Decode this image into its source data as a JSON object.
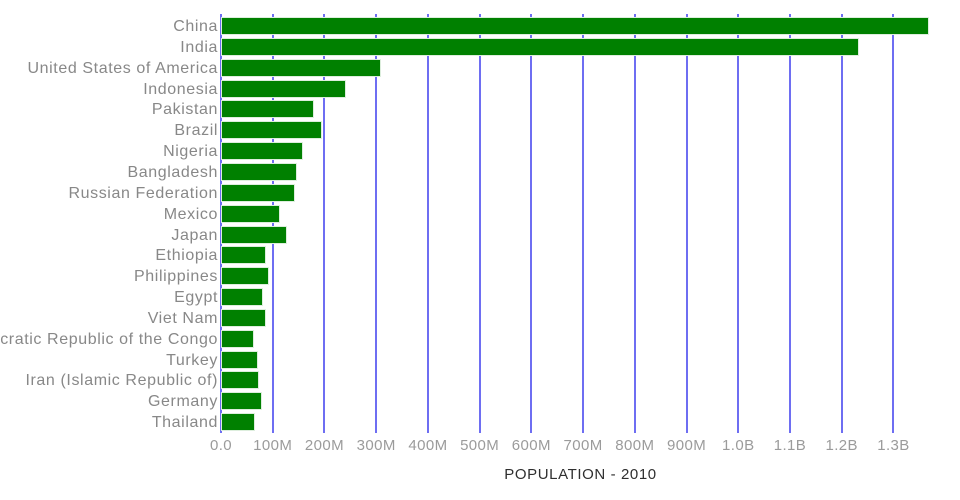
{
  "chart_data": {
    "type": "bar",
    "orientation": "horizontal",
    "title": "POPULATION - 2010",
    "xlabel": "",
    "ylabel": "",
    "legend": "none",
    "grid": "vertical-gridlines-on",
    "categories": [
      "China",
      "India",
      "United States of America",
      "Indonesia",
      "Pakistan",
      "Brazil",
      "Nigeria",
      "Bangladesh",
      "Russian Federation",
      "Mexico",
      "Japan",
      "Ethiopia",
      "Philippines",
      "Egypt",
      "Viet Nam",
      "Democratic Republic of the Congo",
      "Turkey",
      "Iran (Islamic Republic of)",
      "Germany",
      "Thailand"
    ],
    "values_millions": [
      1368,
      1234,
      309,
      242,
      179,
      196,
      158,
      147,
      143,
      114,
      128,
      87,
      93,
      82,
      87,
      64,
      72,
      73,
      80,
      66
    ],
    "x_ticks": [
      "0.0",
      "100M",
      "200M",
      "300M",
      "400M",
      "500M",
      "600M",
      "700M",
      "800M",
      "900M",
      "1.0B",
      "1.1B",
      "1.2B",
      "1.3B"
    ],
    "x_tick_values_millions": [
      0,
      100,
      200,
      300,
      400,
      500,
      600,
      700,
      800,
      900,
      1000,
      1100,
      1200,
      1300
    ],
    "xlim_millions": [
      0,
      1390
    ],
    "colors": {
      "bar_fill": "#008000",
      "bar_border": "#ddeedd",
      "gridline": "#6e6ef2",
      "category_label": "#888888",
      "tick_label": "#9b9b9b",
      "title": "#2f2f2f",
      "background": "#ffffff"
    }
  }
}
